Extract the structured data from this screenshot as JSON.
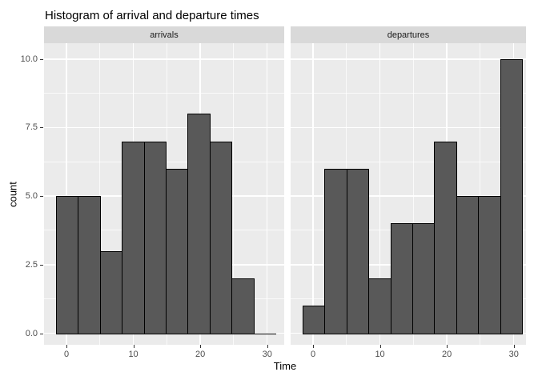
{
  "chart_data": {
    "type": "bar",
    "subtype": "histogram",
    "title": "Histogram of arrival and departure times",
    "xlabel": "Time",
    "ylabel": "count",
    "facets": [
      {
        "label": "arrivals",
        "counts": [
          5,
          5,
          3,
          7,
          7,
          6,
          8,
          7,
          2,
          0
        ]
      },
      {
        "label": "departures",
        "counts": [
          1,
          6,
          6,
          2,
          4,
          4,
          7,
          5,
          5,
          10
        ]
      }
    ],
    "bins": {
      "start": -1.56,
      "width": 3.28
    },
    "x_ticks": {
      "values": [
        0,
        10,
        20,
        30
      ],
      "labels": [
        "0",
        "10",
        "20",
        "30"
      ]
    },
    "y_ticks": {
      "values": [
        0,
        2.5,
        5,
        7.5,
        10
      ],
      "labels": [
        "0.0",
        "2.5",
        "5.0",
        "7.5",
        "10.0"
      ]
    },
    "xlim": [
      -3.35,
      31.8
    ],
    "ylim": [
      -0.42,
      10.58
    ],
    "grid": "on",
    "legend": "none",
    "colors": {
      "bar_fill": "#595959",
      "bar_stroke": "#000000",
      "panel_bg": "#EBEBEB",
      "grid_major": "#FFFFFF",
      "strip_bg": "#D9D9D9",
      "axis_text": "#4D4D4D",
      "tick_mark": "#333333",
      "title_text": "#000000"
    }
  }
}
